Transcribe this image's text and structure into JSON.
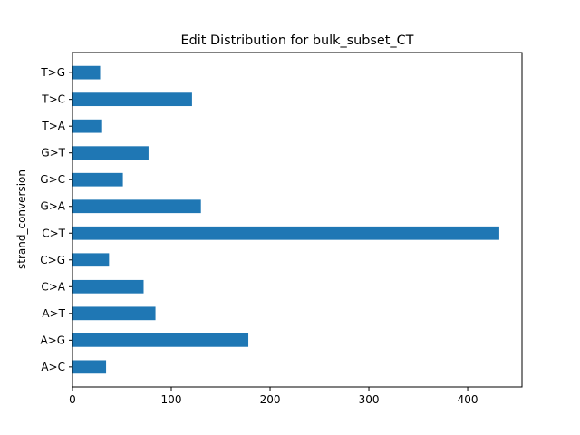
{
  "chart_data": {
    "type": "bar",
    "orientation": "horizontal",
    "title": "Edit Distribution for bulk_subset_CT",
    "xlabel": "",
    "ylabel": "strand_conversion",
    "categories": [
      "A>C",
      "A>G",
      "A>T",
      "C>A",
      "C>G",
      "C>T",
      "G>A",
      "G>C",
      "G>T",
      "T>A",
      "T>C",
      "T>G"
    ],
    "values": [
      34,
      178,
      84,
      72,
      37,
      432,
      130,
      51,
      77,
      30,
      121,
      28
    ],
    "xlim": [
      0,
      455
    ],
    "xticks": [
      0,
      100,
      200,
      300,
      400
    ],
    "bar_color": "#1f77b4",
    "grid": false,
    "legend": "none"
  }
}
